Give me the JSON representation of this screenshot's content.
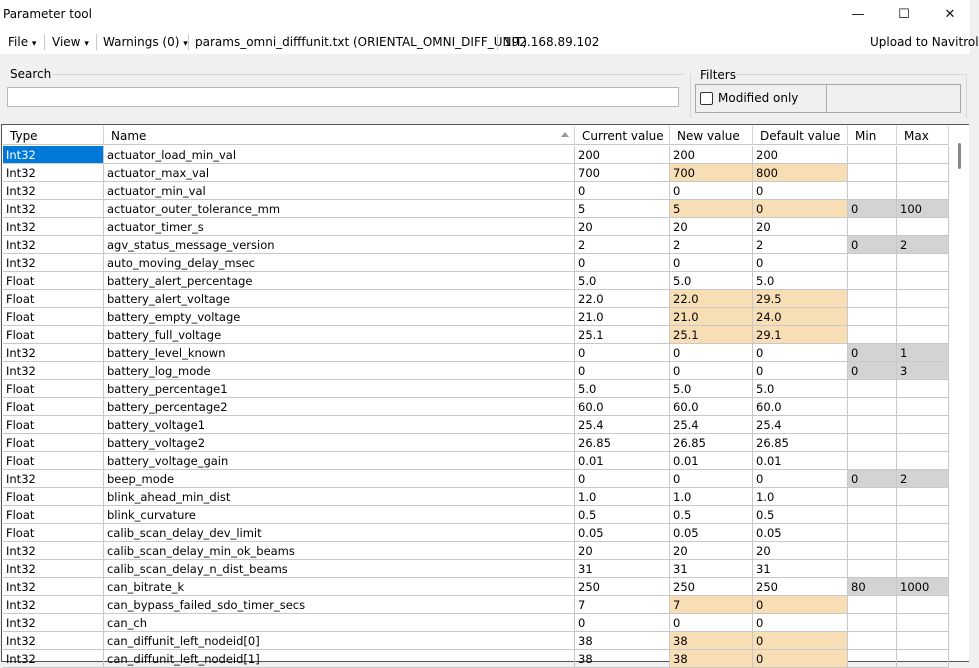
{
  "window": {
    "title": "Parameter tool",
    "minimize_glyph": "—",
    "maximize_glyph": "☐",
    "close_glyph": "✕"
  },
  "menubar": {
    "file": "File",
    "view": "View",
    "warnings": "Warnings (0)",
    "dropdown_arrow": "▾",
    "filename": "params_omni_difffunit.txt (ORIENTAL_OMNI_DIFF_UNIT)",
    "ip": "192.168.89.102",
    "upload": "Upload to Navitrol"
  },
  "search": {
    "label": "Search",
    "value": "",
    "placeholder": ""
  },
  "filters": {
    "label": "Filters",
    "modified_only": "Modified only",
    "modified_only_checked": false
  },
  "columns": [
    "Type",
    "Name",
    "Current value",
    "New value",
    "Default value",
    "Min",
    "Max"
  ],
  "rows": [
    {
      "type": "Int32",
      "name": "actuator_load_min_val",
      "current": "200",
      "new": "200",
      "default": "200",
      "min": "",
      "max": "",
      "modified": false,
      "selected": true
    },
    {
      "type": "Int32",
      "name": "actuator_max_val",
      "current": "700",
      "new": "700",
      "default": "800",
      "min": "",
      "max": "",
      "modified": true
    },
    {
      "type": "Int32",
      "name": "actuator_min_val",
      "current": "0",
      "new": "0",
      "default": "0",
      "min": "",
      "max": "",
      "modified": false
    },
    {
      "type": "Int32",
      "name": "actuator_outer_tolerance_mm",
      "current": "5",
      "new": "5",
      "default": "0",
      "min": "0",
      "max": "100",
      "modified": true
    },
    {
      "type": "Int32",
      "name": "actuator_timer_s",
      "current": "20",
      "new": "20",
      "default": "20",
      "min": "",
      "max": "",
      "modified": false
    },
    {
      "type": "Int32",
      "name": "agv_status_message_version",
      "current": "2",
      "new": "2",
      "default": "2",
      "min": "0",
      "max": "2",
      "modified": false
    },
    {
      "type": "Int32",
      "name": "auto_moving_delay_msec",
      "current": "0",
      "new": "0",
      "default": "0",
      "min": "",
      "max": "",
      "modified": false
    },
    {
      "type": "Float",
      "name": "battery_alert_percentage",
      "current": "5.0",
      "new": "5.0",
      "default": "5.0",
      "min": "",
      "max": "",
      "modified": false
    },
    {
      "type": "Float",
      "name": "battery_alert_voltage",
      "current": "22.0",
      "new": "22.0",
      "default": "29.5",
      "min": "",
      "max": "",
      "modified": true
    },
    {
      "type": "Float",
      "name": "battery_empty_voltage",
      "current": "21.0",
      "new": "21.0",
      "default": "24.0",
      "min": "",
      "max": "",
      "modified": true
    },
    {
      "type": "Float",
      "name": "battery_full_voltage",
      "current": "25.1",
      "new": "25.1",
      "default": "29.1",
      "min": "",
      "max": "",
      "modified": true
    },
    {
      "type": "Int32",
      "name": "battery_level_known",
      "current": "0",
      "new": "0",
      "default": "0",
      "min": "0",
      "max": "1",
      "modified": false
    },
    {
      "type": "Int32",
      "name": "battery_log_mode",
      "current": "0",
      "new": "0",
      "default": "0",
      "min": "0",
      "max": "3",
      "modified": false
    },
    {
      "type": "Float",
      "name": "battery_percentage1",
      "current": "5.0",
      "new": "5.0",
      "default": "5.0",
      "min": "",
      "max": "",
      "modified": false
    },
    {
      "type": "Float",
      "name": "battery_percentage2",
      "current": "60.0",
      "new": "60.0",
      "default": "60.0",
      "min": "",
      "max": "",
      "modified": false
    },
    {
      "type": "Float",
      "name": "battery_voltage1",
      "current": "25.4",
      "new": "25.4",
      "default": "25.4",
      "min": "",
      "max": "",
      "modified": false
    },
    {
      "type": "Float",
      "name": "battery_voltage2",
      "current": "26.85",
      "new": "26.85",
      "default": "26.85",
      "min": "",
      "max": "",
      "modified": false
    },
    {
      "type": "Float",
      "name": "battery_voltage_gain",
      "current": "0.01",
      "new": "0.01",
      "default": "0.01",
      "min": "",
      "max": "",
      "modified": false
    },
    {
      "type": "Int32",
      "name": "beep_mode",
      "current": "0",
      "new": "0",
      "default": "0",
      "min": "0",
      "max": "2",
      "modified": false
    },
    {
      "type": "Float",
      "name": "blink_ahead_min_dist",
      "current": "1.0",
      "new": "1.0",
      "default": "1.0",
      "min": "",
      "max": "",
      "modified": false
    },
    {
      "type": "Float",
      "name": "blink_curvature",
      "current": "0.5",
      "new": "0.5",
      "default": "0.5",
      "min": "",
      "max": "",
      "modified": false
    },
    {
      "type": "Float",
      "name": "calib_scan_delay_dev_limit",
      "current": "0.05",
      "new": "0.05",
      "default": "0.05",
      "min": "",
      "max": "",
      "modified": false
    },
    {
      "type": "Int32",
      "name": "calib_scan_delay_min_ok_beams",
      "current": "20",
      "new": "20",
      "default": "20",
      "min": "",
      "max": "",
      "modified": false
    },
    {
      "type": "Int32",
      "name": "calib_scan_delay_n_dist_beams",
      "current": "31",
      "new": "31",
      "default": "31",
      "min": "",
      "max": "",
      "modified": false
    },
    {
      "type": "Int32",
      "name": "can_bitrate_k",
      "current": "250",
      "new": "250",
      "default": "250",
      "min": "80",
      "max": "1000",
      "modified": false
    },
    {
      "type": "Int32",
      "name": "can_bypass_failed_sdo_timer_secs",
      "current": "7",
      "new": "7",
      "default": "0",
      "min": "",
      "max": "",
      "modified": true
    },
    {
      "type": "Int32",
      "name": "can_ch",
      "current": "0",
      "new": "0",
      "default": "0",
      "min": "",
      "max": "",
      "modified": false
    },
    {
      "type": "Int32",
      "name": "can_diffunit_left_nodeid[0]",
      "current": "38",
      "new": "38",
      "default": "0",
      "min": "",
      "max": "",
      "modified": true
    },
    {
      "type": "Int32",
      "name": "can_diffunit_left_nodeid[1]",
      "current": "38",
      "new": "38",
      "default": "0",
      "min": "",
      "max": "",
      "modified": true
    }
  ],
  "colors": {
    "selected": "#0078d7",
    "modified": "#f7deb5",
    "range": "#d3d3d3"
  }
}
